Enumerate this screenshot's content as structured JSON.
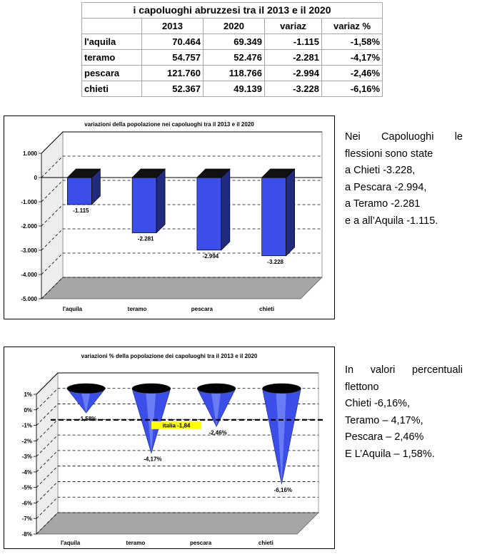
{
  "table": {
    "title": "i capoluoghi abruzzesi tra il 2013 e il 2020",
    "headers": [
      "",
      "2013",
      "2020",
      "variaz",
      "variaz %"
    ],
    "rows": [
      [
        "l'aquila",
        "70.464",
        "69.349",
        "-1.115",
        "-1,58%"
      ],
      [
        "teramo",
        "54.757",
        "52.476",
        "-2.281",
        "-4,17%"
      ],
      [
        "pescara",
        "121.760",
        "118.766",
        "-2.994",
        "-2,46%"
      ],
      [
        "chieti",
        "52.367",
        "49.139",
        "-3.228",
        "-6,16%"
      ]
    ]
  },
  "chart_data": [
    {
      "type": "bar",
      "title": "variazioni della popolazione nei capoluoghi tra il 2013 e il 2020",
      "categories": [
        "l'aquila",
        "teramo",
        "pescara",
        "chieti"
      ],
      "values": [
        -1115,
        -2281,
        -2994,
        -3228
      ],
      "data_labels": [
        "-1.115",
        "-2.281",
        "-2.994",
        "-3.228"
      ],
      "ylim": [
        -5000,
        1000
      ],
      "yticks": [
        1000,
        0,
        -1000,
        -2000,
        -3000,
        -4000,
        -5000
      ],
      "ytick_labels": [
        "1.000",
        "0",
        "-1.000",
        "-2.000",
        "-3.000",
        "-4.000",
        "-5.000"
      ],
      "grid": true,
      "bar_color": "#3b4fe8"
    },
    {
      "type": "bar",
      "title": "variazioni % della popolazione dei capoluoghi tra il 2013 e il 2020",
      "categories": [
        "l'aquila",
        "teramo",
        "pescara",
        "chieti"
      ],
      "values": [
        -1.58,
        -4.17,
        -2.46,
        -6.16
      ],
      "data_labels": [
        "-1,58%",
        "-4,17%",
        "-2,46%",
        "-6,16%"
      ],
      "ylim": [
        -8,
        1
      ],
      "yticks": [
        1,
        0,
        -1,
        -2,
        -3,
        -4,
        -5,
        -6,
        -7,
        -8
      ],
      "ytick_labels": [
        "1%",
        "0%",
        "-1%",
        "-2%",
        "-3%",
        "-4%",
        "-5%",
        "-6%",
        "-7%",
        "-8%"
      ],
      "reference_line": {
        "value": -1.84,
        "label": "italia -1,84"
      },
      "grid": true,
      "bar_color": "#3b4fe8",
      "highlight_color": "#ffff00"
    }
  ],
  "paragraph1": {
    "line1": "Nei Capoluoghi le",
    "line2": "flessioni sono state",
    "line3": "a Chieti -3.228,",
    "line4": "a Pescara -2.994,",
    "line5": "a Teramo -2.281",
    "line6": "e a all’Aquila -1.115."
  },
  "paragraph2": {
    "line1": "In valori percentuali",
    "line2": "flettono",
    "line3": "Chieti -6,16%,",
    "line4": "Teramo – 4,17%,",
    "line5": "Pescara – 2,46%",
    "line6": "E L’Aquila – 1,58%."
  }
}
